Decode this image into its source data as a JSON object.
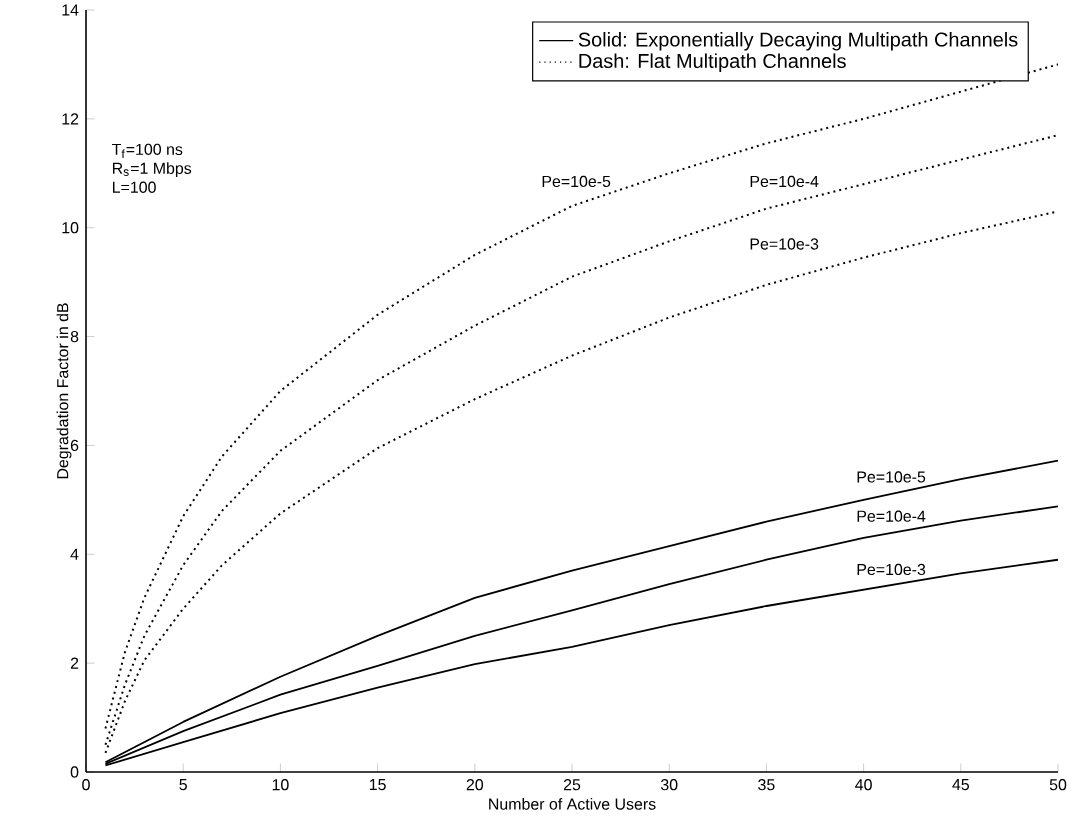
{
  "chart_data": {
    "type": "line",
    "xlabel": "Number of Active Users",
    "ylabel": "Degradation Factor in dB",
    "xlim": [
      0,
      50
    ],
    "ylim": [
      0,
      14
    ],
    "xticks": [
      0,
      5,
      10,
      15,
      20,
      25,
      30,
      35,
      40,
      45,
      50
    ],
    "yticks": [
      0,
      2,
      4,
      6,
      8,
      10,
      12,
      14
    ],
    "legend": "top right",
    "color": "#000000",
    "annotations": [
      "Solid: Exponentially Decaying Multipath Channels",
      "Dash: Flat Multipath Channels",
      "T$_{f}$=100 ns",
      "R$_{s}$=1 Mbps",
      "L=100"
    ],
    "x": [
      1,
      2,
      3,
      5,
      7,
      10,
      15,
      20,
      25,
      30,
      35,
      40,
      45,
      50
    ],
    "series": [
      {
        "name": "Pe=10e-5",
        "line_style": "dotted",
        "values": [
          0.8,
          2.2,
          3.2,
          4.7,
          5.8,
          7.0,
          8.4,
          9.5,
          10.4,
          11.0,
          11.55,
          12.0,
          12.5,
          13.0
        ]
      },
      {
        "name": "Pe=10e-4",
        "line_style": "dotted",
        "values": [
          0.5,
          1.6,
          2.5,
          3.8,
          4.8,
          5.9,
          7.2,
          8.2,
          9.1,
          9.75,
          10.35,
          10.8,
          11.25,
          11.7
        ]
      },
      {
        "name": "Pe=10e-3",
        "line_style": "dotted",
        "values": [
          0.35,
          1.3,
          2.05,
          3.0,
          3.8,
          4.75,
          5.95,
          6.85,
          7.65,
          8.35,
          8.95,
          9.45,
          9.9,
          10.3
        ]
      },
      {
        "name": "Pe=10e-5",
        "line_style": "solid",
        "x": [
          1,
          5,
          10,
          15,
          20,
          25,
          30,
          35,
          40,
          45,
          50
        ],
        "values": [
          0.18,
          0.92,
          1.75,
          2.5,
          3.2,
          3.7,
          4.15,
          4.6,
          5.0,
          5.38,
          5.72
        ]
      },
      {
        "name": "Pe=10e-4",
        "line_style": "solid",
        "x": [
          1,
          5,
          10,
          15,
          20,
          25,
          30,
          35,
          40,
          45,
          50
        ],
        "values": [
          0.15,
          0.75,
          1.42,
          1.95,
          2.5,
          2.97,
          3.45,
          3.9,
          4.3,
          4.62,
          4.88
        ]
      },
      {
        "name": "Pe=10e-3",
        "line_style": "solid",
        "x": [
          1,
          5,
          10,
          15,
          20,
          25,
          30,
          35,
          40,
          45,
          50
        ],
        "values": [
          0.12,
          0.55,
          1.08,
          1.55,
          1.98,
          2.3,
          2.7,
          3.05,
          3.35,
          3.65,
          3.9
        ]
      }
    ]
  }
}
